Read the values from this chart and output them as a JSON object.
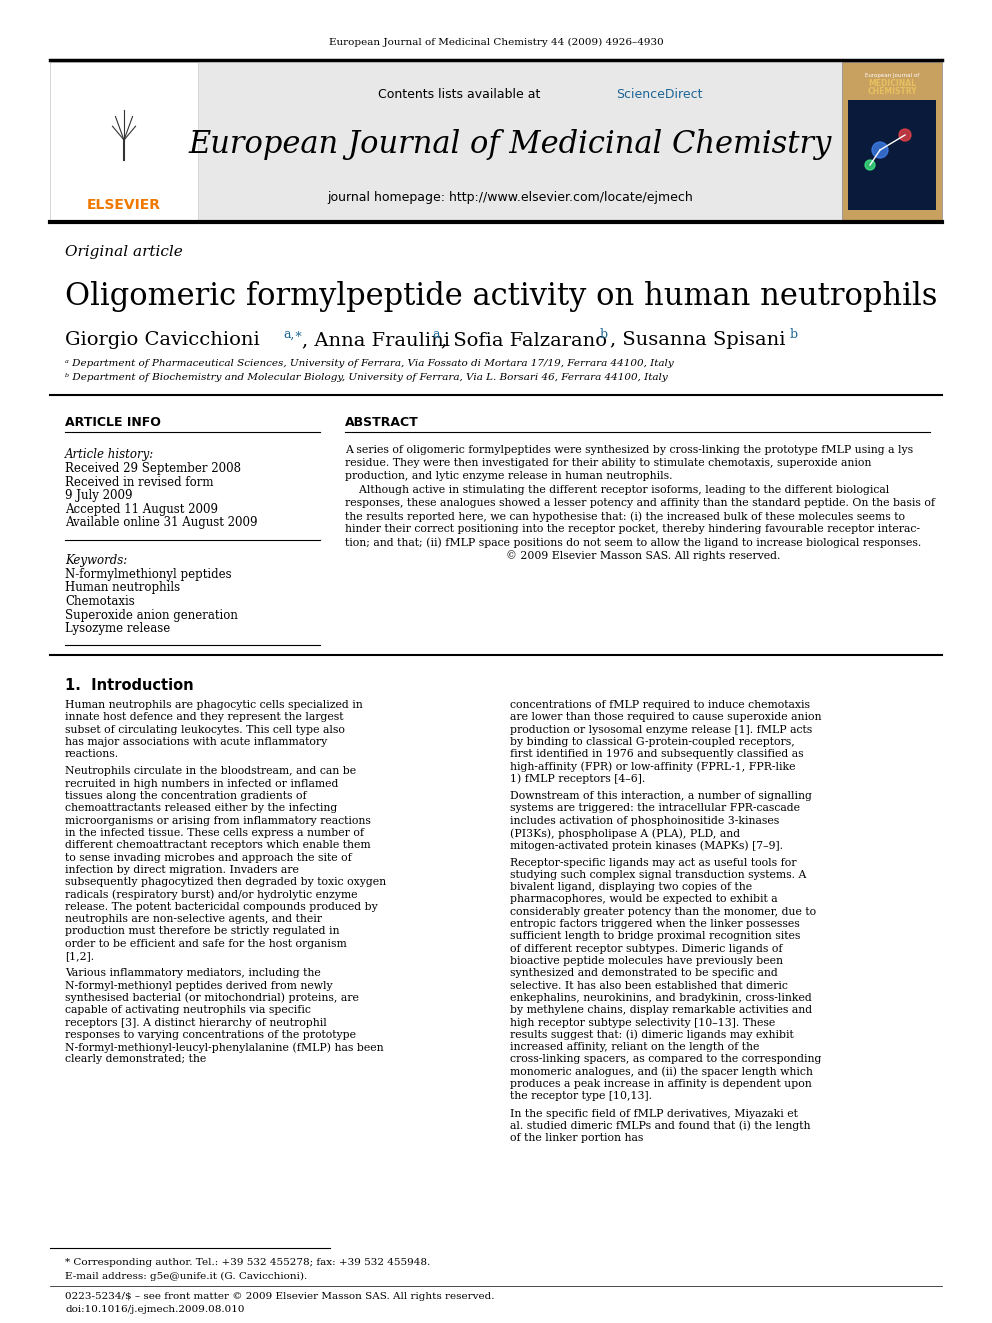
{
  "page_citation": "European Journal of Medicinal Chemistry 44 (2009) 4926–4930",
  "journal_name": "European Journal of Medicinal Chemistry",
  "journal_homepage": "journal homepage: http://www.elsevier.com/locate/ejmech",
  "article_type": "Original article",
  "title": "Oligomeric formylpeptide activity on human neutrophils",
  "affil_a": "ᵃ Department of Pharmaceutical Sciences, University of Ferrara, Via Fossato di Mortara 17/19, Ferrara 44100, Italy",
  "affil_b": "ᵇ Department of Biochemistry and Molecular Biology, University of Ferrara, Via L. Borsari 46, Ferrara 44100, Italy",
  "article_info_header": "ARTICLE INFO",
  "abstract_header": "ABSTRACT",
  "article_history_label": "Article history:",
  "received1": "Received 29 September 2008",
  "received2": "Received in revised form",
  "received2b": "9 July 2009",
  "accepted": "Accepted 11 August 2009",
  "available": "Available online 31 August 2009",
  "keywords_label": "Keywords:",
  "keywords": [
    "N-formylmethionyl peptides",
    "Human neutrophils",
    "Chemotaxis",
    "Superoxide anion generation",
    "Lysozyme release"
  ],
  "section1_title": "1.  Introduction",
  "intro_col1_p1": "Human neutrophils are phagocytic cells specialized in innate host defence and they represent the largest subset of circulating leukocytes. This cell type also has major associations with acute inflammatory reactions.",
  "intro_col1_p2": "Neutrophils circulate in the bloodstream, and can be recruited in high numbers in infected or inflamed tissues along the concentration gradients of chemoattractants released either by the infecting microorganisms or arising from inflammatory reactions in the infected tissue. These cells express a number of different chemoattractant receptors which enable them to sense invading microbes and approach the site of infection by direct migration. Invaders are subsequently phagocytized then degraded by toxic oxygen radicals (respiratory burst) and/or hydrolytic enzyme release. The potent bactericidal compounds produced by neutrophils are non-selective agents, and their production must therefore be strictly regulated in order to be efficient and safe for the host organism [1,2].",
  "intro_col1_p3": "Various inflammatory mediators, including the N-formyl-methionyl peptides derived from newly synthesised bacterial (or mitochondrial) proteins, are capable of activating neutrophils via specific receptors [3]. A distinct hierarchy of neutrophil responses to varying concentrations of the prototype N-formyl-methionyl-leucyl-phenylalanine (fMLP) has been clearly demonstrated; the",
  "intro_col2_p1": "concentrations of fMLP required to induce chemotaxis are lower than those required to cause superoxide anion production or lysosomal enzyme release [1]. fMLP acts by binding to classical G-protein-coupled receptors, first identified in 1976 and subsequently classified as high-affinity (FPR) or low-affinity (FPRL-1, FPR-like 1) fMLP receptors [4–6].",
  "intro_col2_p2": "Downstream of this interaction, a number of signalling systems are triggered: the intracellular FPR-cascade includes activation of phosphoinositide 3-kinases (PI3Ks), phospholipase A (PLA), PLD, and mitogen-activated protein kinases (MAPKs) [7–9].",
  "intro_col2_p3": "Receptor-specific ligands may act as useful tools for studying such complex signal transduction systems. A bivalent ligand, displaying two copies of the pharmacophores, would be expected to exhibit a considerably greater potency than the monomer, due to entropic factors triggered when the linker possesses sufficient length to bridge proximal recognition sites of different receptor subtypes. Dimeric ligands of bioactive peptide molecules have previously been synthesized and demonstrated to be specific and selective. It has also been established that dimeric enkephalins, neurokinins, and bradykinin, cross-linked by methylene chains, display remarkable activities and high receptor subtype selectivity [10–13]. These results suggest that: (i) dimeric ligands may exhibit increased affinity, reliant on the length of the cross-linking spacers, as compared to the corresponding monomeric analogues, and (ii) the spacer length which produces a peak increase in affinity is dependent upon the receptor type [10,13].",
  "intro_col2_p4": "In the specific field of fMLP derivatives, Miyazaki et al. studied dimeric fMLPs and found that (i) the length of the linker portion has",
  "footnote_star": "* Corresponding author. Tel.: +39 532 455278; fax: +39 532 455948.",
  "footnote_email": "E-mail address: g5e@unife.it (G. Cavicchioni).",
  "footnote_issn": "0223-5234/$ – see front matter © 2009 Elsevier Masson SAS. All rights reserved.",
  "footnote_doi": "doi:10.1016/j.ejmech.2009.08.010",
  "abs_lines": [
    "A series of oligomeric formylpeptides were synthesized by cross-linking the prototype fMLP using a lys",
    "residue. They were then investigated for their ability to stimulate chemotaxis, superoxide anion",
    "production, and lytic enzyme release in human neutrophils.",
    "    Although active in stimulating the different receptor isoforms, leading to the different biological",
    "responses, these analogues showed a lesser potency and affinity than the standard peptide. On the basis of",
    "the results reported here, we can hypothesise that: (i) the increased bulk of these molecules seems to",
    "hinder their correct positioning into the receptor pocket, thereby hindering favourable receptor interac-",
    "tion; and that; (ii) fMLP space positions do not seem to allow the ligand to increase biological responses.",
    "                                              © 2009 Elsevier Masson SAS. All rights reserved."
  ],
  "bg_color": "#ffffff",
  "header_bg": "#e8e8e8",
  "black": "#000000",
  "sciencedirect_color": "#1a6496",
  "elsevier_orange": "#f07800"
}
